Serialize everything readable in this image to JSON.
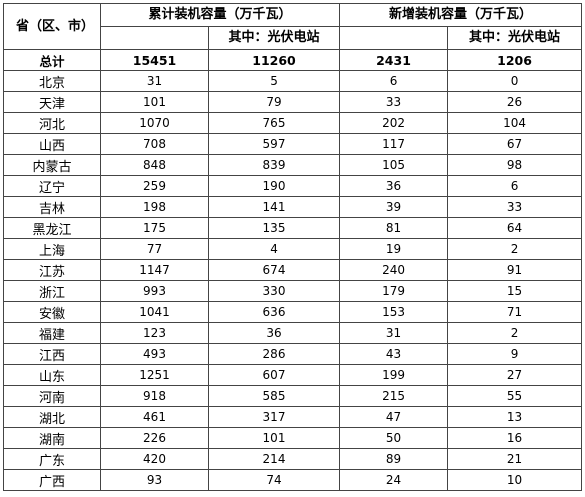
{
  "headers": {
    "region": "省（区、市）",
    "cumulative": "累计装机容量（万千瓦）",
    "new": "新增装机容量（万千瓦）",
    "of_which_pv": "其中：光伏电站"
  },
  "total": {
    "name": "总计",
    "cum_total": "15451",
    "cum_pv": "11260",
    "new_total": "2431",
    "new_pv": "1206"
  },
  "rows": [
    {
      "name": "北京",
      "cum_total": "31",
      "cum_pv": "5",
      "new_total": "6",
      "new_pv": "0"
    },
    {
      "name": "天津",
      "cum_total": "101",
      "cum_pv": "79",
      "new_total": "33",
      "new_pv": "26"
    },
    {
      "name": "河北",
      "cum_total": "1070",
      "cum_pv": "765",
      "new_total": "202",
      "new_pv": "104"
    },
    {
      "name": "山西",
      "cum_total": "708",
      "cum_pv": "597",
      "new_total": "117",
      "new_pv": "67"
    },
    {
      "name": "内蒙古",
      "cum_total": "848",
      "cum_pv": "839",
      "new_total": "105",
      "new_pv": "98"
    },
    {
      "name": "辽宁",
      "cum_total": "259",
      "cum_pv": "190",
      "new_total": "36",
      "new_pv": "6"
    },
    {
      "name": "吉林",
      "cum_total": "198",
      "cum_pv": "141",
      "new_total": "39",
      "new_pv": "33"
    },
    {
      "name": "黑龙江",
      "cum_total": "175",
      "cum_pv": "135",
      "new_total": "81",
      "new_pv": "64"
    },
    {
      "name": "上海",
      "cum_total": "77",
      "cum_pv": "4",
      "new_total": "19",
      "new_pv": "2"
    },
    {
      "name": "江苏",
      "cum_total": "1147",
      "cum_pv": "674",
      "new_total": "240",
      "new_pv": "91"
    },
    {
      "name": "浙江",
      "cum_total": "993",
      "cum_pv": "330",
      "new_total": "179",
      "new_pv": "15"
    },
    {
      "name": "安徽",
      "cum_total": "1041",
      "cum_pv": "636",
      "new_total": "153",
      "new_pv": "71"
    },
    {
      "name": "福建",
      "cum_total": "123",
      "cum_pv": "36",
      "new_total": "31",
      "new_pv": "2"
    },
    {
      "name": "江西",
      "cum_total": "493",
      "cum_pv": "286",
      "new_total": "43",
      "new_pv": "9"
    },
    {
      "name": "山东",
      "cum_total": "1251",
      "cum_pv": "607",
      "new_total": "199",
      "new_pv": "27"
    },
    {
      "name": "河南",
      "cum_total": "918",
      "cum_pv": "585",
      "new_total": "215",
      "new_pv": "55"
    },
    {
      "name": "湖北",
      "cum_total": "461",
      "cum_pv": "317",
      "new_total": "47",
      "new_pv": "13"
    },
    {
      "name": "湖南",
      "cum_total": "226",
      "cum_pv": "101",
      "new_total": "50",
      "new_pv": "16"
    },
    {
      "name": "广东",
      "cum_total": "420",
      "cum_pv": "214",
      "new_total": "89",
      "new_pv": "21"
    },
    {
      "name": "广西",
      "cum_total": "93",
      "cum_pv": "74",
      "new_total": "24",
      "new_pv": "10"
    }
  ]
}
